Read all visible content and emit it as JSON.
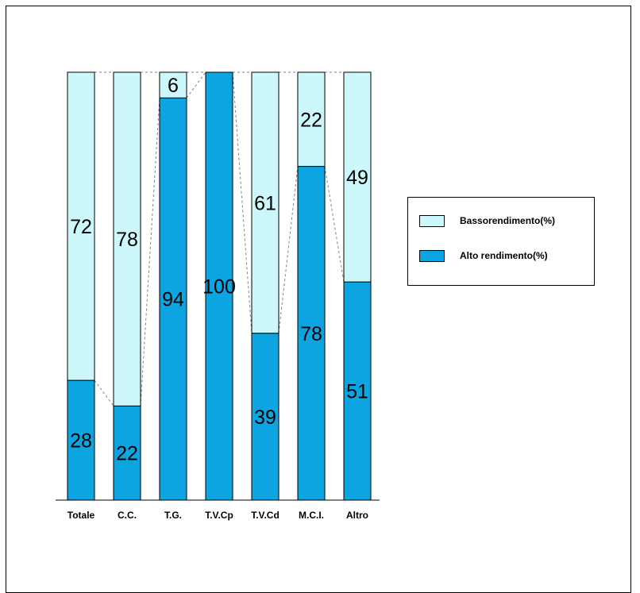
{
  "chart_data": {
    "type": "bar",
    "stacked": true,
    "percent_stacked": true,
    "categories": [
      "Totale",
      "C.C.",
      "T.G.",
      "T.V.Cp",
      "T.V.Cd",
      "M.C.I.",
      "Altro"
    ],
    "series": [
      {
        "name": "Alto rendimento(%)",
        "values": [
          28,
          22,
          94,
          100,
          39,
          78,
          51
        ]
      },
      {
        "name": "Bassorendimento(%)",
        "values": [
          72,
          78,
          6,
          0,
          61,
          22,
          49
        ]
      }
    ],
    "ylim": [
      0,
      100
    ],
    "series_lines": true,
    "grid": false,
    "legend_position": "right"
  },
  "colors": {
    "alto": "#0ca5e2",
    "basso": "#ccf8fb",
    "outline": "#000000",
    "series_line": "#808080"
  },
  "legend": {
    "items": [
      {
        "label": "Bassorendimento(%)",
        "color": "#ccf8fb"
      },
      {
        "label": "Alto rendimento(%)",
        "color": "#0ca5e2"
      }
    ]
  }
}
